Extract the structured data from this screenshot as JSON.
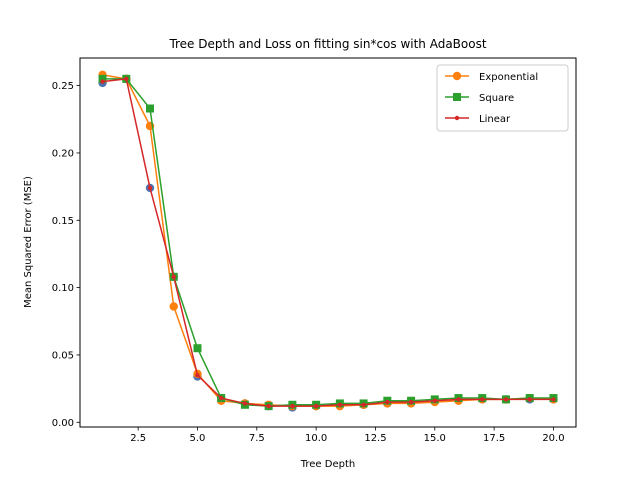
{
  "chart_data": {
    "type": "line",
    "title": "Tree Depth and Loss on fitting sin*cos with AdaBoost",
    "xlabel": "Tree Depth",
    "ylabel": "Mean Squared Error (MSE)",
    "xlim": [
      0.05,
      20.95
    ],
    "ylim": [
      -0.0035,
      0.2705
    ],
    "xticks": [
      2.5,
      5.0,
      7.5,
      10.0,
      12.5,
      15.0,
      17.5,
      20.0
    ],
    "xtick_labels": [
      "2.5",
      "5.0",
      "7.5",
      "10.0",
      "12.5",
      "15.0",
      "17.5",
      "20.0"
    ],
    "yticks": [
      0.0,
      0.05,
      0.1,
      0.15,
      0.2,
      0.25
    ],
    "ytick_labels": [
      "0.00",
      "0.05",
      "0.10",
      "0.15",
      "0.20",
      "0.25"
    ],
    "grid": false,
    "legend_position": "top-right",
    "x": [
      1,
      2,
      3,
      4,
      5,
      6,
      7,
      8,
      9,
      10,
      11,
      12,
      13,
      14,
      15,
      16,
      17,
      18,
      19,
      20
    ],
    "series": [
      {
        "name": "Exponential",
        "color": "#ff7f0e",
        "marker": "circle",
        "values": [
          0.258,
          0.255,
          0.22,
          0.086,
          0.036,
          0.016,
          0.014,
          0.013,
          0.012,
          0.012,
          0.012,
          0.013,
          0.014,
          0.014,
          0.015,
          0.016,
          0.017,
          0.017,
          0.018,
          0.017
        ]
      },
      {
        "name": "Square",
        "color": "#2ca02c",
        "marker": "square",
        "values": [
          0.255,
          0.255,
          0.233,
          0.108,
          0.055,
          0.018,
          0.013,
          0.012,
          0.013,
          0.013,
          0.014,
          0.014,
          0.016,
          0.016,
          0.017,
          0.018,
          0.018,
          0.017,
          0.018,
          0.018
        ]
      },
      {
        "name": "Linear",
        "color": "#d62728",
        "marker": "point",
        "values": [
          0.253,
          0.255,
          0.174,
          0.108,
          0.035,
          0.018,
          0.014,
          0.012,
          0.012,
          0.012,
          0.013,
          0.013,
          0.015,
          0.015,
          0.016,
          0.017,
          0.017,
          0.017,
          0.017,
          0.017
        ]
      }
    ],
    "overlay_markers": {
      "color": "#4c72b0",
      "marker": "circle",
      "values": [
        0.252,
        0.255,
        0.174,
        0.108,
        0.034,
        0.018,
        0.014,
        0.012,
        0.011,
        0.012,
        0.013,
        0.013,
        0.014,
        0.015,
        0.016,
        0.017,
        0.017,
        0.017,
        0.017,
        0.017
      ]
    }
  }
}
